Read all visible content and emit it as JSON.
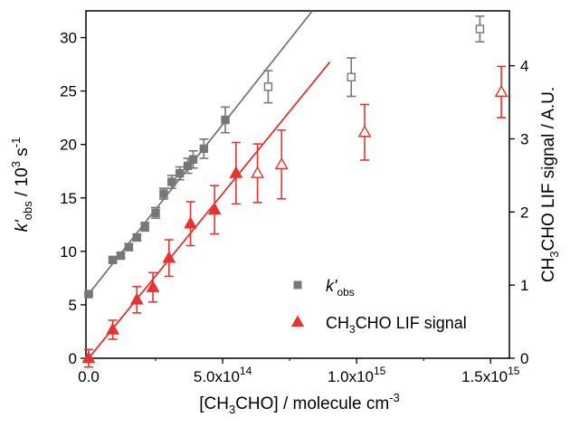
{
  "chart_data": {
    "type": "scatter",
    "xlabel": "[CH3CHO] / molecule cm-3",
    "ylabel_left": "k'obs / 10^3 s-1",
    "ylabel_right": "CH3CHO LIF signal / A.U.",
    "xlim": [
      -10000000000000.0,
      1570000000000000.0
    ],
    "ylim_left": [
      0,
      32.5
    ],
    "ylim_right": [
      0,
      4.75
    ],
    "x_ticks": [
      0,
      500000000000000.0,
      1000000000000000.0,
      1500000000000000.0
    ],
    "x_tick_labels": [
      "0.0",
      "5.0x10^14",
      "1.0x10^15",
      "1.5x10^15"
    ],
    "y_left_ticks": [
      0,
      5,
      10,
      15,
      20,
      25,
      30
    ],
    "y_right_ticks": [
      0,
      1,
      2,
      3,
      4
    ],
    "grid": false,
    "legend_position": "bottom-right",
    "series": [
      {
        "name": "k'obs",
        "axis": "left",
        "marker": "square",
        "color": "#777777",
        "points": [
          {
            "x": 0.0,
            "y": 6.0,
            "err": 0.1,
            "filled": true
          },
          {
            "x": 90000000000000.0,
            "y": 9.2,
            "err": 0.2,
            "filled": true
          },
          {
            "x": 120000000000000.0,
            "y": 9.6,
            "err": 0.25,
            "filled": true
          },
          {
            "x": 150000000000000.0,
            "y": 10.4,
            "err": 0.3,
            "filled": true
          },
          {
            "x": 180000000000000.0,
            "y": 11.3,
            "err": 0.3,
            "filled": true
          },
          {
            "x": 210000000000000.0,
            "y": 12.3,
            "err": 0.4,
            "filled": true
          },
          {
            "x": 250000000000000.0,
            "y": 13.6,
            "err": 0.5,
            "filled": true
          },
          {
            "x": 280000000000000.0,
            "y": 15.4,
            "err": 0.5,
            "filled": true
          },
          {
            "x": 310000000000000.0,
            "y": 16.5,
            "err": 0.6,
            "filled": true
          },
          {
            "x": 340000000000000.0,
            "y": 17.3,
            "err": 0.6,
            "filled": true
          },
          {
            "x": 370000000000000.0,
            "y": 18.0,
            "err": 0.7,
            "filled": true
          },
          {
            "x": 390000000000000.0,
            "y": 18.6,
            "err": 0.8,
            "filled": true
          },
          {
            "x": 430000000000000.0,
            "y": 19.6,
            "err": 0.9,
            "filled": true
          },
          {
            "x": 510000000000000.0,
            "y": 22.3,
            "err": 1.2,
            "filled": true
          },
          {
            "x": 670000000000000.0,
            "y": 25.4,
            "err": 1.5,
            "filled": false
          },
          {
            "x": 980000000000000.0,
            "y": 26.3,
            "err": 1.8,
            "filled": false
          },
          {
            "x": 1460000000000000.0,
            "y": 30.8,
            "err": 1.2,
            "filled": false
          }
        ],
        "fit": {
          "x0": 0.0,
          "y0": 6.0,
          "x1": 835000000000000.0,
          "y1": 32.5
        }
      },
      {
        "name": "CH3CHO LIF signal",
        "axis": "right",
        "marker": "triangle",
        "color": "#e8322f",
        "points": [
          {
            "x": 0.0,
            "y": 0.0,
            "err": 0.12,
            "filled": true
          },
          {
            "x": 90000000000000.0,
            "y": 0.39,
            "err": 0.13,
            "filled": true
          },
          {
            "x": 180000000000000.0,
            "y": 0.8,
            "err": 0.18,
            "filled": true
          },
          {
            "x": 240000000000000.0,
            "y": 0.97,
            "err": 0.2,
            "filled": true
          },
          {
            "x": 300000000000000.0,
            "y": 1.37,
            "err": 0.25,
            "filled": true
          },
          {
            "x": 380000000000000.0,
            "y": 1.84,
            "err": 0.3,
            "filled": true
          },
          {
            "x": 470000000000000.0,
            "y": 2.03,
            "err": 0.33,
            "filled": true
          },
          {
            "x": 550000000000000.0,
            "y": 2.53,
            "err": 0.42,
            "filled": true
          },
          {
            "x": 630000000000000.0,
            "y": 2.53,
            "err": 0.4,
            "filled": false
          },
          {
            "x": 720000000000000.0,
            "y": 2.65,
            "err": 0.47,
            "filled": false
          },
          {
            "x": 1030000000000000.0,
            "y": 3.09,
            "err": 0.38,
            "filled": false
          },
          {
            "x": 1540000000000000.0,
            "y": 3.64,
            "err": 0.35,
            "filled": false
          }
        ],
        "fit": {
          "x0": 0.0,
          "y0": 0.0,
          "x1": 900000000000000.0,
          "y1": 4.05
        }
      }
    ]
  },
  "legend": [
    {
      "series": 0,
      "pre": "k'",
      "sub": "obs",
      "post": ""
    },
    {
      "series": 1,
      "pre": "CH",
      "sub": "3",
      "post": "CHO LIF signal"
    }
  ],
  "labels": {
    "x": {
      "a": "[CH",
      "s1": "3",
      "b": "CHO] / molecule cm",
      "sup": "-3"
    },
    "yl": {
      "a": "k'",
      "s1": "obs",
      "b": " / 10",
      "sup1": "3",
      "c": " s",
      "sup2": "-1"
    },
    "yr": {
      "a": "CH",
      "s1": "3",
      "b": "CHO LIF signal / A.U."
    }
  },
  "x_tick_text": [
    {
      "base": "0.0",
      "exp": ""
    },
    {
      "base": "5.0x10",
      "exp": "14"
    },
    {
      "base": "1.0x10",
      "exp": "15"
    },
    {
      "base": "1.5x10",
      "exp": "15"
    }
  ]
}
